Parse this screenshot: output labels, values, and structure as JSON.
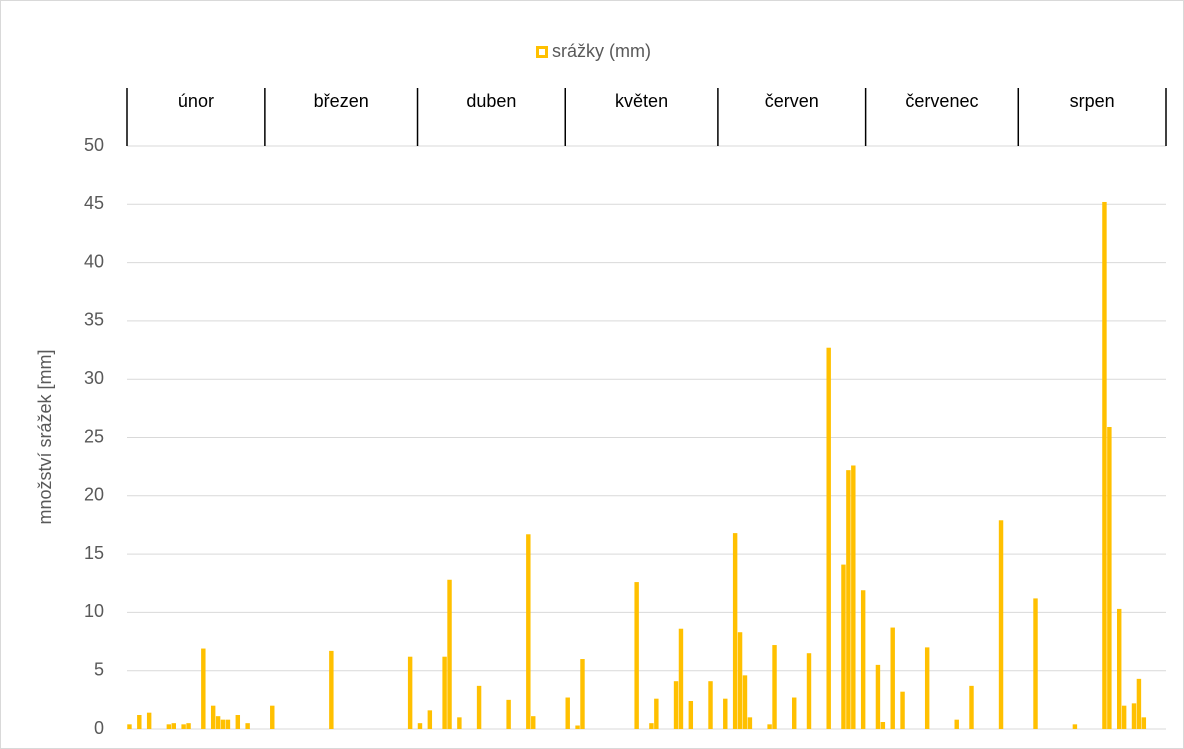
{
  "chart_data": {
    "type": "bar",
    "legend": "srážky (mm)",
    "ylabel": "množství srážek [mm]",
    "color": "#ffc000",
    "groups": [
      {
        "label": "únor",
        "count": 28
      },
      {
        "label": "březen",
        "count": 31
      },
      {
        "label": "duben",
        "count": 30
      },
      {
        "label": "květen",
        "count": 31
      },
      {
        "label": "červen",
        "count": 30
      },
      {
        "label": "červenec",
        "count": 31
      },
      {
        "label": "srpen",
        "count": 30
      }
    ],
    "values": [
      0.4,
      0,
      1.2,
      0,
      1.4,
      0,
      0,
      0,
      0.4,
      0.5,
      0,
      0.4,
      0.5,
      0,
      0,
      6.9,
      0,
      2.0,
      1.1,
      0.8,
      0.8,
      0,
      1.2,
      0,
      0.5,
      0,
      0,
      0,
      0,
      2.0,
      0,
      0,
      0,
      0,
      0,
      0,
      0,
      0,
      0,
      0,
      0,
      6.7,
      0,
      0,
      0,
      0,
      0,
      0,
      0,
      0,
      0,
      0,
      0,
      0,
      0,
      0,
      0,
      6.2,
      0,
      0.5,
      0,
      1.6,
      0,
      0,
      6.2,
      12.8,
      0,
      1.0,
      0,
      0,
      0,
      3.7,
      0,
      0,
      0,
      0,
      0,
      2.5,
      0,
      0,
      0,
      16.7,
      1.1,
      0,
      0,
      0,
      0,
      0,
      0,
      2.7,
      0,
      0.3,
      6.0,
      0,
      0,
      0,
      0,
      0,
      0,
      0,
      0,
      0,
      0,
      12.6,
      0,
      0,
      0.5,
      2.6,
      0,
      0,
      0,
      4.1,
      8.6,
      0,
      2.4,
      0,
      0,
      0,
      4.1,
      0,
      0,
      2.6,
      0,
      16.8,
      8.3,
      4.6,
      1.0,
      0,
      0,
      0,
      0.4,
      7.2,
      0,
      0,
      0,
      2.7,
      0,
      0,
      6.5,
      0,
      0,
      0,
      32.7,
      0,
      0,
      14.1,
      22.2,
      22.6,
      0,
      11.9,
      0,
      0,
      5.5,
      0.6,
      0,
      8.7,
      0,
      3.2,
      0,
      0,
      0,
      0,
      7.0,
      0,
      0,
      0,
      0,
      0,
      0.8,
      0,
      0,
      3.7,
      0,
      0,
      0,
      0,
      0,
      17.9,
      0,
      0,
      0,
      0,
      0,
      0,
      11.2,
      0,
      0,
      0,
      0,
      0,
      0,
      0,
      0.4,
      0,
      0,
      0,
      0,
      0,
      45.2,
      25.9,
      0,
      10.3,
      2.0,
      0,
      2.2,
      4.3,
      1.0,
      0,
      0,
      0,
      0
    ],
    "ylim": [
      0,
      50
    ],
    "yticks": [
      0,
      5,
      10,
      15,
      20,
      25,
      30,
      35,
      40,
      45,
      50
    ],
    "grid": true
  }
}
